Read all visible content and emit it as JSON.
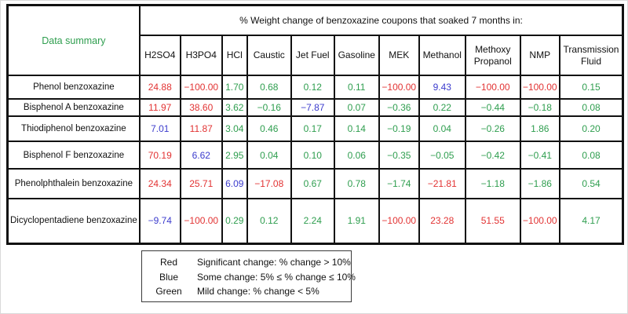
{
  "colors": {
    "red": "#e23333",
    "green": "#2f9e4f",
    "blue": "#3c3ccd"
  },
  "legend": {
    "items": [
      {
        "name": "Red",
        "text": "Significant change:  % change > 10%"
      },
      {
        "name": "Blue",
        "text": "Some change: 5%  ≤ % change ≤ 10%"
      },
      {
        "name": "Green",
        "text": "Mild change:  % change < 5%"
      }
    ]
  },
  "chart_data": {
    "type": "table",
    "title": "% Weight change of benzoxazine coupons that soaked 7 months in:",
    "corner_label": "Data summary",
    "color_key": {
      "r": "red: % change > 10%",
      "b": "blue: 5% ≤ % change ≤ 10%",
      "g": "green: % change < 5%"
    },
    "columns": [
      "H2SO4",
      "H3PO4",
      "HCl",
      "Caustic",
      "Jet Fuel",
      "Gasoline",
      "MEK",
      "Methanol",
      "Methoxy Propanol",
      "NMP",
      "Transmission Fluid"
    ],
    "rows": [
      {
        "label": "Phenol benzoxazine",
        "cells": [
          {
            "v": "24.88",
            "c": "r"
          },
          {
            "v": "−100.00",
            "c": "r"
          },
          {
            "v": "1.70",
            "c": "g"
          },
          {
            "v": "0.68",
            "c": "g"
          },
          {
            "v": "0.12",
            "c": "g"
          },
          {
            "v": "0.11",
            "c": "g"
          },
          {
            "v": "−100.00",
            "c": "r"
          },
          {
            "v": "9.43",
            "c": "b"
          },
          {
            "v": "−100.00",
            "c": "r"
          },
          {
            "v": "−100.00",
            "c": "r"
          },
          {
            "v": "0.15",
            "c": "g"
          }
        ]
      },
      {
        "label": "Bisphenol A benzoxazine",
        "cells": [
          {
            "v": "11.97",
            "c": "r"
          },
          {
            "v": "38.60",
            "c": "r"
          },
          {
            "v": "3.62",
            "c": "g"
          },
          {
            "v": "−0.16",
            "c": "g"
          },
          {
            "v": "−7.87",
            "c": "b"
          },
          {
            "v": "0.07",
            "c": "g"
          },
          {
            "v": "−0.36",
            "c": "g"
          },
          {
            "v": "0.22",
            "c": "g"
          },
          {
            "v": "−0.44",
            "c": "g"
          },
          {
            "v": "−0.18",
            "c": "g"
          },
          {
            "v": "0.08",
            "c": "g"
          }
        ]
      },
      {
        "label": "Thiodiphenol benzoxazine",
        "cells": [
          {
            "v": "7.01",
            "c": "b"
          },
          {
            "v": "11.87",
            "c": "r"
          },
          {
            "v": "3.04",
            "c": "g"
          },
          {
            "v": "0.46",
            "c": "g"
          },
          {
            "v": "0.17",
            "c": "g"
          },
          {
            "v": "0.14",
            "c": "g"
          },
          {
            "v": "−0.19",
            "c": "g"
          },
          {
            "v": "0.04",
            "c": "g"
          },
          {
            "v": "−0.26",
            "c": "g"
          },
          {
            "v": "1.86",
            "c": "g"
          },
          {
            "v": "0.20",
            "c": "g"
          }
        ]
      },
      {
        "label": "Bisphenol F benzoxazine",
        "cells": [
          {
            "v": "70.19",
            "c": "r"
          },
          {
            "v": "6.62",
            "c": "b"
          },
          {
            "v": "2.95",
            "c": "g"
          },
          {
            "v": "0.04",
            "c": "g"
          },
          {
            "v": "0.10",
            "c": "g"
          },
          {
            "v": "0.06",
            "c": "g"
          },
          {
            "v": "−0.35",
            "c": "g"
          },
          {
            "v": "−0.05",
            "c": "g"
          },
          {
            "v": "−0.42",
            "c": "g"
          },
          {
            "v": "−0.41",
            "c": "g"
          },
          {
            "v": "0.08",
            "c": "g"
          }
        ]
      },
      {
        "label": "Phenolphthalein benzoxazine",
        "cells": [
          {
            "v": "24.34",
            "c": "r"
          },
          {
            "v": "25.71",
            "c": "r"
          },
          {
            "v": "6.09",
            "c": "b"
          },
          {
            "v": "−17.08",
            "c": "r"
          },
          {
            "v": "0.67",
            "c": "g"
          },
          {
            "v": "0.78",
            "c": "g"
          },
          {
            "v": "−1.74",
            "c": "g"
          },
          {
            "v": "−21.81",
            "c": "r"
          },
          {
            "v": "−1.18",
            "c": "g"
          },
          {
            "v": "−1.86",
            "c": "g"
          },
          {
            "v": "0.54",
            "c": "g"
          }
        ]
      },
      {
        "label": "Dicyclopentadiene benzoxazine",
        "cells": [
          {
            "v": "−9.74",
            "c": "b"
          },
          {
            "v": "−100.00",
            "c": "r"
          },
          {
            "v": "0.29",
            "c": "g"
          },
          {
            "v": "0.12",
            "c": "g"
          },
          {
            "v": "2.24",
            "c": "g"
          },
          {
            "v": "1.91",
            "c": "g"
          },
          {
            "v": "−100.00",
            "c": "r"
          },
          {
            "v": "23.28",
            "c": "r"
          },
          {
            "v": "51.55",
            "c": "r"
          },
          {
            "v": "−100.00",
            "c": "r"
          },
          {
            "v": "4.17",
            "c": "g"
          }
        ]
      }
    ],
    "legend_position": "bottom-left"
  }
}
